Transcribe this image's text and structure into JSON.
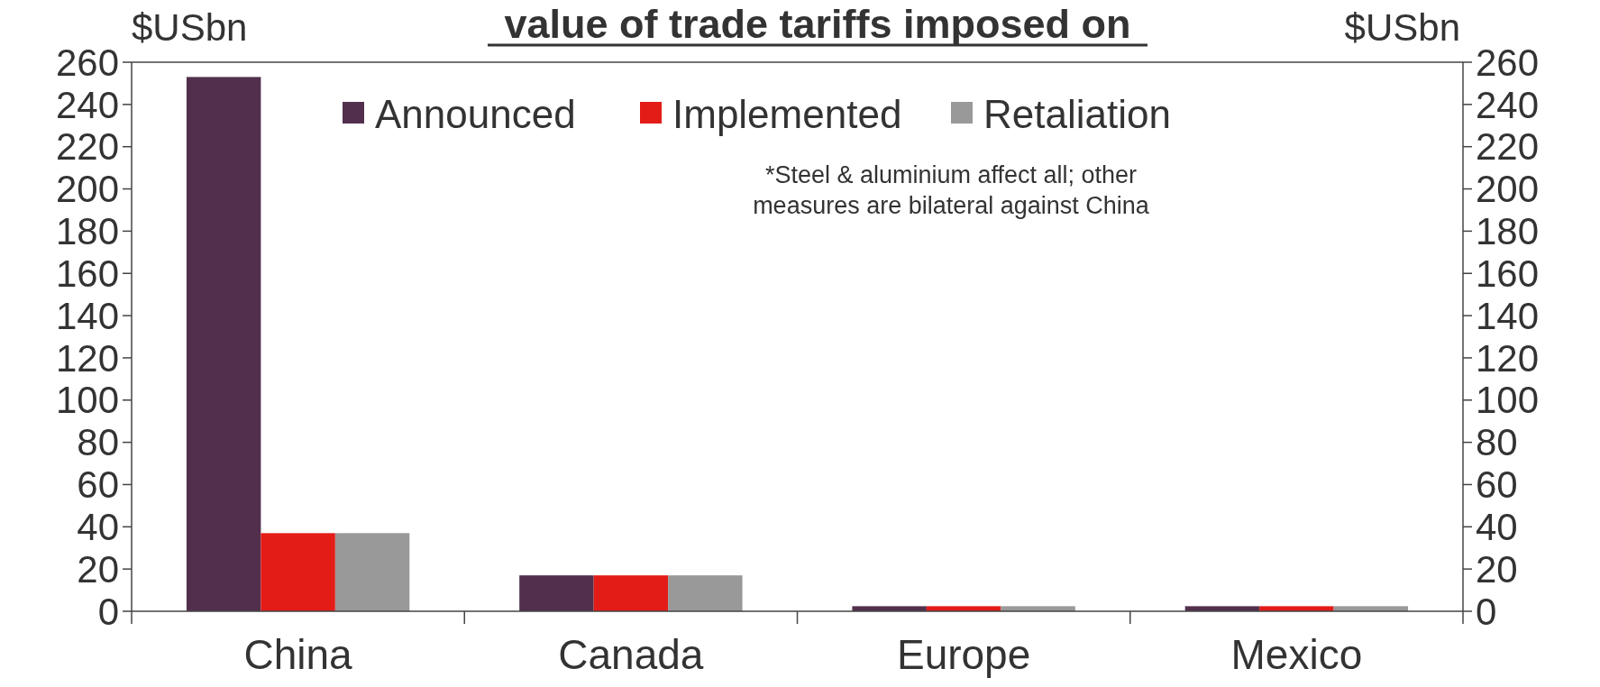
{
  "chart_data": {
    "type": "bar",
    "title": "value of trade tariffs imposed on",
    "ylabel": "$USbn",
    "y2label": "$USbn",
    "categories": [
      "China",
      "Canada",
      "Europe",
      "Mexico"
    ],
    "series": [
      {
        "name": "Announced",
        "color": "#52304d",
        "values": [
          253,
          17,
          2.4,
          2.4
        ]
      },
      {
        "name": "Implemented",
        "color": "#e31c17",
        "values": [
          37,
          17,
          2.4,
          2.4
        ]
      },
      {
        "name": "Retaliation",
        "color": "#999999",
        "values": [
          37,
          17,
          2.4,
          2.4
        ]
      }
    ],
    "ylim": [
      0,
      260
    ],
    "yticks": [
      0,
      20,
      40,
      60,
      80,
      100,
      120,
      140,
      160,
      180,
      200,
      220,
      240,
      260
    ],
    "y2lim": [
      0,
      260
    ],
    "y2ticks": [
      0,
      20,
      40,
      60,
      80,
      100,
      120,
      140,
      160,
      180,
      200,
      220,
      240,
      260
    ],
    "legend": "top",
    "grid": false,
    "annotations": [
      "*Steel & aluminium affect all; other measures are bilateral against China"
    ]
  }
}
